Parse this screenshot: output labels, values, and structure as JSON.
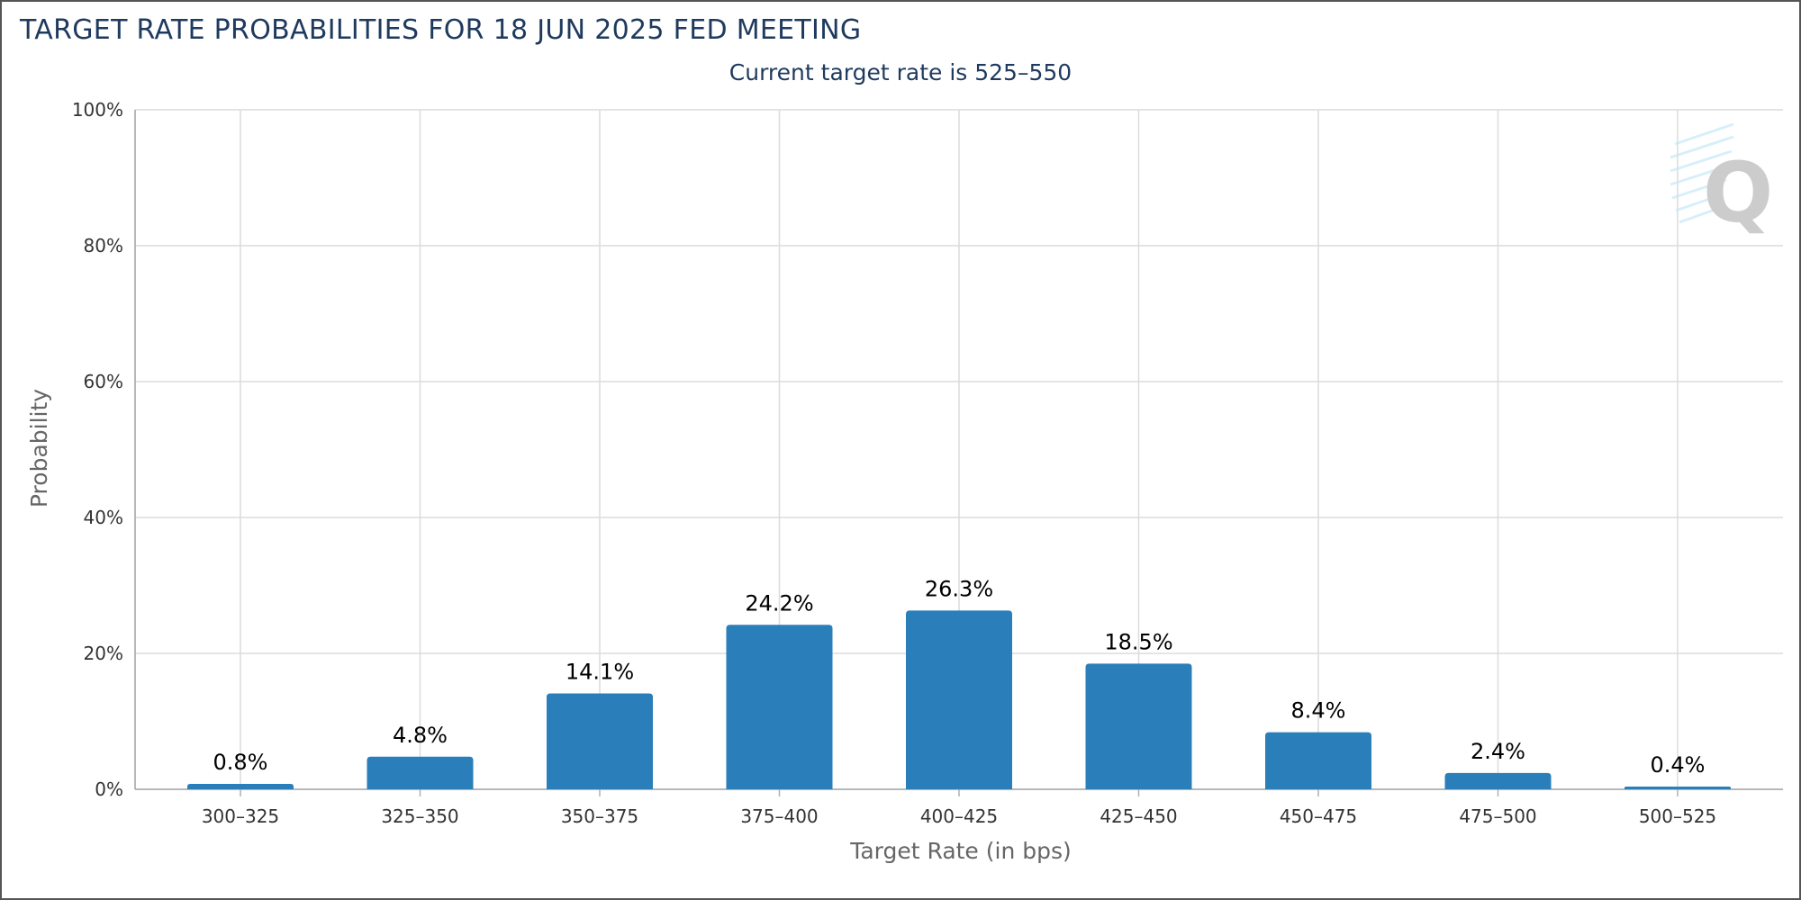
{
  "chart_data": {
    "type": "bar",
    "title": "TARGET RATE PROBABILITIES FOR 18 JUN 2025 FED MEETING",
    "subtitle": "Current target rate is 525–550",
    "xlabel": "Target Rate (in bps)",
    "ylabel": "Probability",
    "categories": [
      "300–325",
      "325–350",
      "350–375",
      "375–400",
      "400–425",
      "425–450",
      "450–475",
      "475–500",
      "500–525"
    ],
    "values": [
      0.8,
      4.8,
      14.1,
      24.2,
      26.3,
      18.5,
      8.4,
      2.4,
      0.4
    ],
    "data_labels": [
      "0.8%",
      "4.8%",
      "14.1%",
      "24.2%",
      "26.3%",
      "18.5%",
      "8.4%",
      "2.4%",
      "0.4%"
    ],
    "ylim": [
      0,
      100
    ],
    "yticks": [
      0,
      20,
      40,
      60,
      80,
      100
    ],
    "ytick_labels": [
      "0%",
      "20%",
      "40%",
      "60%",
      "80%",
      "100%"
    ],
    "grid": true,
    "legend": "none",
    "bar_color": "#2a7fba",
    "watermark": "Q"
  }
}
